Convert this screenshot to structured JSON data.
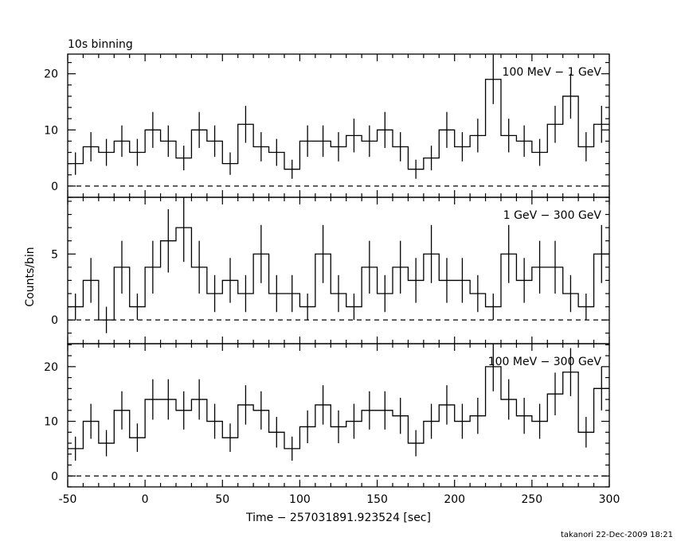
{
  "title": "10s binning",
  "xlabel": "Time − 257031891.923524 [sec]",
  "ylabel": "Counts/bin",
  "footer": "takanori 22-Dec-2009 18:21",
  "chart_data": [
    {
      "type": "line",
      "label": "100 MeV − 1 GeV",
      "xlim": [
        -50,
        300
      ],
      "ylim": [
        -2,
        23.5
      ],
      "yticks": [
        0,
        10,
        20
      ],
      "xticks": [
        -50,
        0,
        50,
        100,
        150,
        200,
        250,
        300
      ],
      "bin_width": 10,
      "x": [
        -45,
        -35,
        -25,
        -15,
        -5,
        5,
        15,
        25,
        35,
        45,
        55,
        65,
        75,
        85,
        95,
        105,
        115,
        125,
        135,
        145,
        155,
        165,
        175,
        185,
        195,
        205,
        215,
        225,
        235,
        245,
        255,
        265,
        275,
        285,
        295
      ],
      "values": [
        4,
        7,
        6,
        8,
        6,
        10,
        8,
        5,
        10,
        8,
        4,
        11,
        7,
        6,
        3,
        8,
        8,
        7,
        9,
        8,
        10,
        7,
        3,
        5,
        10,
        7,
        9,
        19,
        9,
        8,
        6,
        11,
        16,
        7,
        11
      ],
      "errors": [
        2,
        2.6,
        2.4,
        2.8,
        2.4,
        3.2,
        2.8,
        2.2,
        3.2,
        2.8,
        2,
        3.3,
        2.6,
        2.4,
        1.7,
        2.8,
        2.8,
        2.6,
        3,
        2.8,
        3.2,
        2.6,
        1.7,
        2.2,
        3.2,
        2.6,
        3,
        4.4,
        3,
        2.8,
        2.4,
        3.3,
        4,
        2.6,
        3.3
      ]
    },
    {
      "type": "line",
      "label": "1 GeV − 300 GeV",
      "xlim": [
        -50,
        300
      ],
      "ylim": [
        -1.8,
        9.3
      ],
      "yticks": [
        0,
        5
      ],
      "xticks": [
        -50,
        0,
        50,
        100,
        150,
        200,
        250,
        300
      ],
      "bin_width": 10,
      "x": [
        -45,
        -35,
        -25,
        -15,
        -5,
        5,
        15,
        25,
        35,
        45,
        55,
        65,
        75,
        85,
        95,
        105,
        115,
        125,
        135,
        145,
        155,
        165,
        175,
        185,
        195,
        205,
        215,
        225,
        235,
        245,
        255,
        265,
        275,
        285,
        295
      ],
      "values": [
        1,
        3,
        0,
        4,
        1,
        4,
        6,
        7,
        4,
        2,
        3,
        2,
        5,
        2,
        2,
        1,
        5,
        2,
        1,
        4,
        2,
        4,
        3,
        5,
        3,
        3,
        2,
        1,
        5,
        3,
        4,
        4,
        2,
        1,
        5
      ],
      "errors": [
        1,
        1.7,
        1,
        2,
        1,
        2,
        2.4,
        2.6,
        2,
        1.4,
        1.7,
        1.4,
        2.2,
        1.4,
        1.4,
        1,
        2.2,
        1.4,
        1,
        2,
        1.4,
        2,
        1.7,
        2.2,
        1.7,
        1.7,
        1.4,
        1,
        2.2,
        1.7,
        2,
        2,
        1.4,
        1,
        2.2
      ]
    },
    {
      "type": "line",
      "label": "100 MeV − 300 GeV",
      "xlim": [
        -50,
        300
      ],
      "ylim": [
        -2,
        24.2
      ],
      "yticks": [
        0,
        10,
        20
      ],
      "xticks": [
        -50,
        0,
        50,
        100,
        150,
        200,
        250,
        300
      ],
      "bin_width": 10,
      "x": [
        -45,
        -35,
        -25,
        -15,
        -5,
        5,
        15,
        25,
        35,
        45,
        55,
        65,
        75,
        85,
        95,
        105,
        115,
        125,
        135,
        145,
        155,
        165,
        175,
        185,
        195,
        205,
        215,
        225,
        235,
        245,
        255,
        265,
        275,
        285,
        295
      ],
      "values": [
        5,
        10,
        6,
        12,
        7,
        14,
        14,
        12,
        14,
        10,
        7,
        13,
        12,
        8,
        5,
        9,
        13,
        9,
        10,
        12,
        12,
        11,
        6,
        10,
        13,
        10,
        11,
        20,
        14,
        11,
        10,
        15,
        19,
        8,
        16
      ],
      "errors": [
        2.2,
        3.2,
        2.4,
        3.5,
        2.6,
        3.7,
        3.7,
        3.5,
        3.7,
        3.2,
        2.6,
        3.6,
        3.5,
        2.8,
        2.2,
        3,
        3.6,
        3,
        3.2,
        3.5,
        3.5,
        3.3,
        2.4,
        3.2,
        3.6,
        3.2,
        3.3,
        4.5,
        3.7,
        3.3,
        3.2,
        3.9,
        4.4,
        2.8,
        4
      ]
    }
  ]
}
